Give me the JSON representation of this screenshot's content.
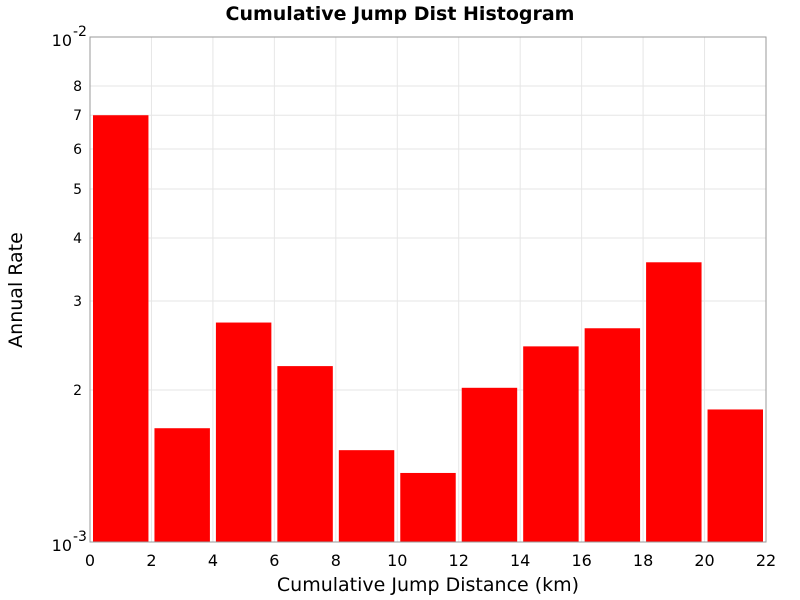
{
  "chart_data": {
    "type": "bar",
    "title": "Cumulative Jump Dist Histogram",
    "xlabel": "Cumulative Jump Distance (km)",
    "ylabel": "Annual Rate",
    "xlim": [
      0,
      22
    ],
    "ylim": [
      0.001,
      0.01
    ],
    "yscale": "log",
    "grid": true,
    "bar_color": "#ff0000",
    "x_ticks": [
      "0",
      "2",
      "4",
      "6",
      "8",
      "10",
      "12",
      "14",
      "16",
      "18",
      "20",
      "22"
    ],
    "y_major_ticks": [
      {
        "value": 0.01,
        "base": "10",
        "exp": "-2"
      },
      {
        "value": 0.001,
        "base": "10",
        "exp": "-3"
      }
    ],
    "y_minor_ticks": [
      {
        "value": 0.008,
        "label": "8"
      },
      {
        "value": 0.007,
        "label": "7"
      },
      {
        "value": 0.006,
        "label": "6"
      },
      {
        "value": 0.005,
        "label": "5"
      },
      {
        "value": 0.004,
        "label": "4"
      },
      {
        "value": 0.003,
        "label": "3"
      },
      {
        "value": 0.002,
        "label": "2"
      }
    ],
    "bins": [
      {
        "x0": 0,
        "x1": 2,
        "value": 0.007
      },
      {
        "x0": 2,
        "x1": 4,
        "value": 0.00168
      },
      {
        "x0": 4,
        "x1": 6,
        "value": 0.00272
      },
      {
        "x0": 6,
        "x1": 8,
        "value": 0.00223
      },
      {
        "x0": 8,
        "x1": 10,
        "value": 0.00152
      },
      {
        "x0": 10,
        "x1": 12,
        "value": 0.00137
      },
      {
        "x0": 12,
        "x1": 14,
        "value": 0.00202
      },
      {
        "x0": 14,
        "x1": 16,
        "value": 0.00244
      },
      {
        "x0": 16,
        "x1": 18,
        "value": 0.00265
      },
      {
        "x0": 18,
        "x1": 20,
        "value": 0.00358
      },
      {
        "x0": 20,
        "x1": 22,
        "value": 0.00183
      }
    ]
  }
}
